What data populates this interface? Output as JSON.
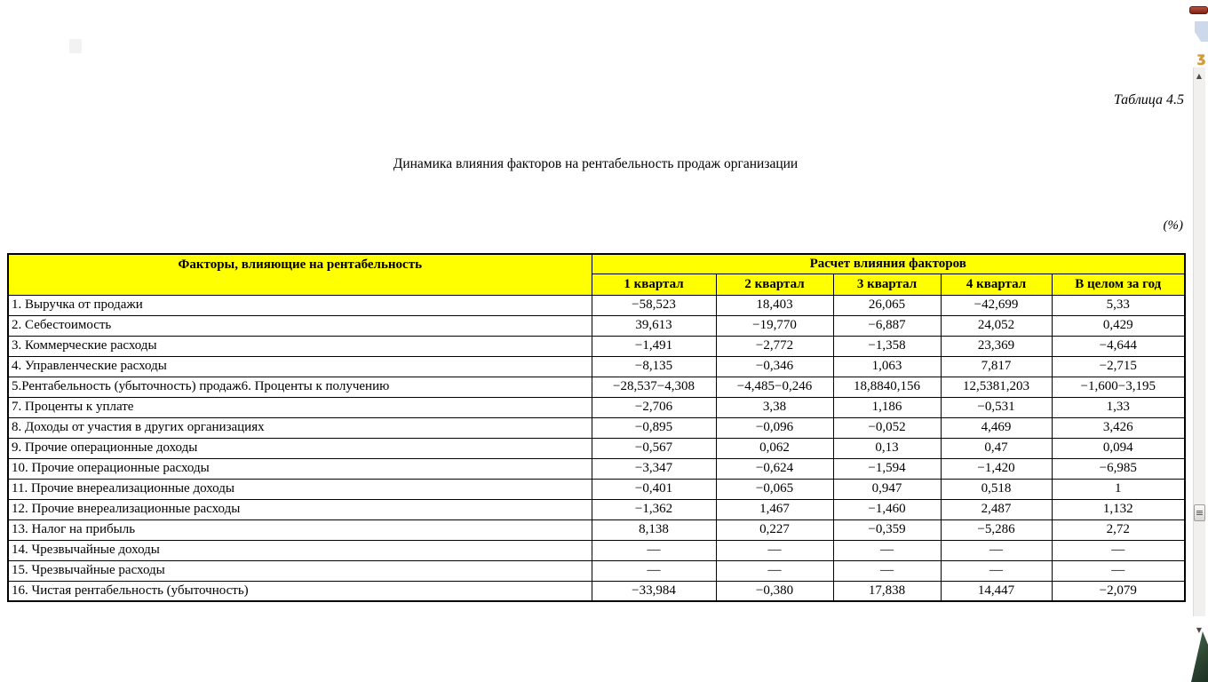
{
  "document": {
    "caption": "Таблица 4.5",
    "title": "Динамика влияния факторов на рентабельность продаж организации",
    "unit_label": "(%)"
  },
  "table": {
    "header_bg": "#ffff00",
    "header": {
      "factors_label": "Факторы, влияющие на рентабельность",
      "calc_label": "Расчет влияния факторов",
      "columns": [
        "1 квартал",
        "2 квартал",
        "3 квартал",
        "4 квартал",
        "В целом за год"
      ]
    },
    "rows": [
      {
        "label": "1. Выручка от продажи",
        "values": [
          "−58,523",
          "18,403",
          "26,065",
          "−42,699",
          "5,33"
        ]
      },
      {
        "label": "2. Себестоимость",
        "values": [
          "39,613",
          "−19,770",
          "−6,887",
          "24,052",
          "0,429"
        ]
      },
      {
        "label": "3. Коммерческие расходы",
        "values": [
          "−1,491",
          "−2,772",
          "−1,358",
          "23,369",
          "−4,644"
        ]
      },
      {
        "label": "4. Управленческие расходы",
        "values": [
          "−8,135",
          "−0,346",
          "1,063",
          "7,817",
          "−2,715"
        ]
      },
      {
        "label": "5.Рентабельность (убыточность) продаж6. Проценты к получению",
        "values": [
          "−28,537−4,308",
          "−4,485−0,246",
          "18,8840,156",
          "12,5381,203",
          "−1,600−3,195"
        ]
      },
      {
        "label": "7. Проценты к уплате",
        "values": [
          "−2,706",
          "3,38",
          "1,186",
          "−0,531",
          "1,33"
        ]
      },
      {
        "label": "8. Доходы от участия в других организациях",
        "values": [
          "−0,895",
          "−0,096",
          "−0,052",
          "4,469",
          "3,426"
        ]
      },
      {
        "label": "9. Прочие операционные доходы",
        "values": [
          "−0,567",
          "0,062",
          "0,13",
          "0,47",
          "0,094"
        ]
      },
      {
        "label": "10. Прочие операционные расходы",
        "values": [
          "−3,347",
          "−0,624",
          "−1,594",
          "−1,420",
          "−6,985"
        ]
      },
      {
        "label": "11. Прочие внереализационные доходы",
        "values": [
          "−0,401",
          "−0,065",
          "0,947",
          "0,518",
          "1"
        ]
      },
      {
        "label": "12. Прочие внереализационные расходы",
        "values": [
          "−1,362",
          "1,467",
          "−1,460",
          "2,487",
          "1,132"
        ]
      },
      {
        "label": "13. Налог на прибыль",
        "values": [
          "8,138",
          "0,227",
          "−0,359",
          "−5,286",
          "2,72"
        ]
      },
      {
        "label": "14. Чрезвычайные доходы",
        "values": [
          "—",
          "—",
          "—",
          "—",
          "—"
        ]
      },
      {
        "label": "15. Чрезвычайные расходы",
        "values": [
          "—",
          "—",
          "—",
          "—",
          "—"
        ]
      },
      {
        "label": "16. Чистая рентабельность (убыточность)",
        "values": [
          "−33,984",
          "−0,380",
          "17,838",
          "14,447",
          "−2,079"
        ]
      }
    ]
  },
  "chrome": {
    "icons": {
      "scroll_up": "▲",
      "scroll_down": "▼",
      "browse_object": "≡",
      "scroll_anchor": "ʒ"
    },
    "colors": {
      "header_yellow": "#ffff00",
      "red_bar": "#96301f",
      "blue_block": "#cdd9eb",
      "green_corner": "#2c4531",
      "scrollbar_track": "#f1f0ee"
    }
  }
}
